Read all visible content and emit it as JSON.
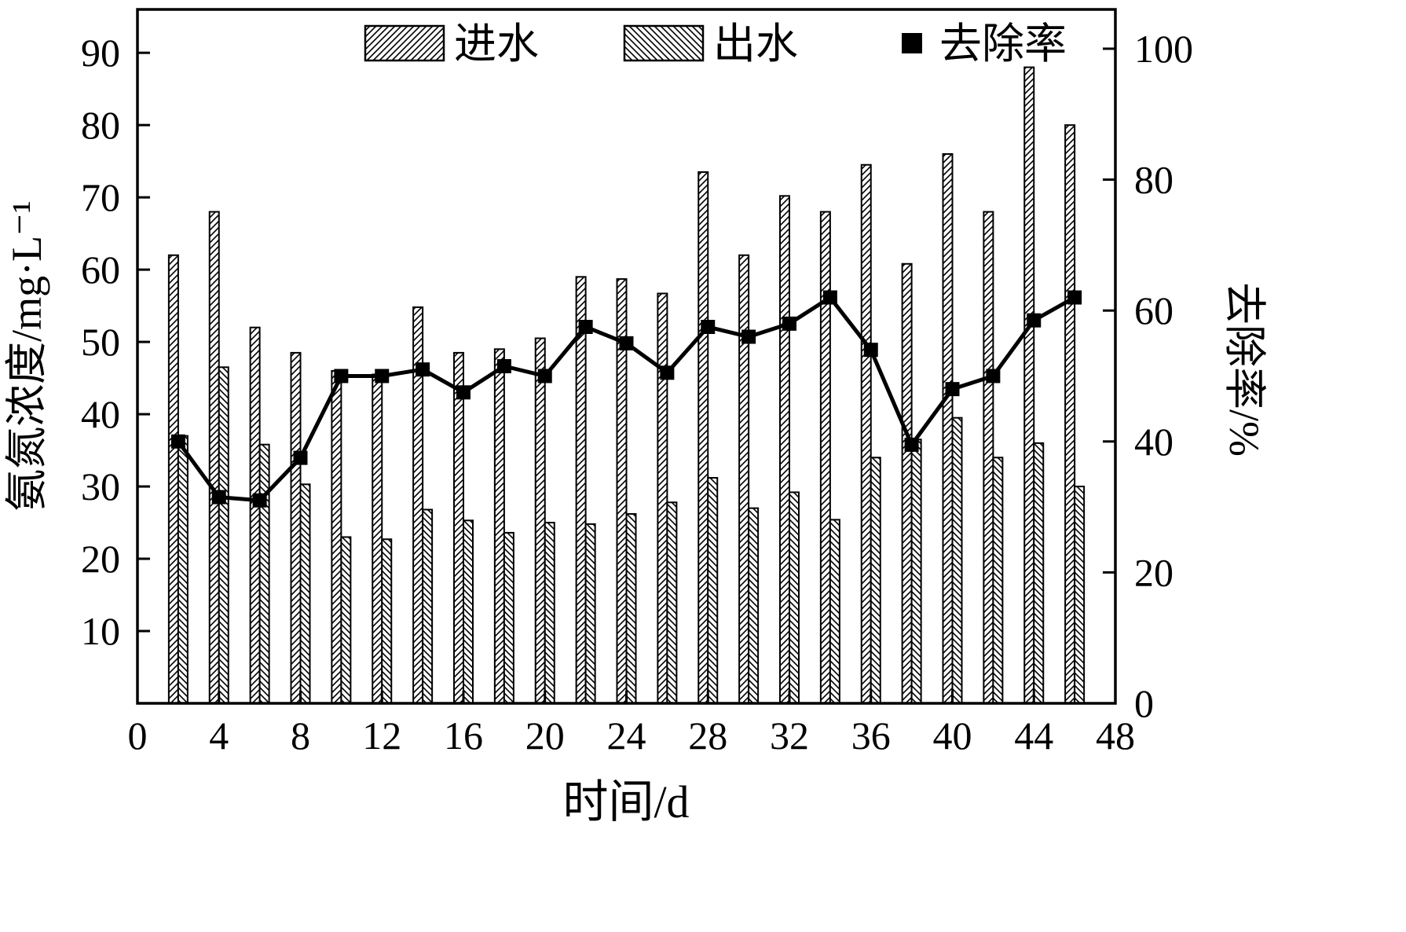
{
  "chart_data": {
    "type": "bar+line",
    "xlabel": "时间/d",
    "ylabel_left": "氨氮浓度/mg·L⁻¹",
    "ylabel_right": "去除率/%",
    "xlim": [
      0,
      48
    ],
    "ylim_left": [
      0,
      96
    ],
    "ylim_right": [
      0,
      106
    ],
    "xticks": [
      0,
      4,
      8,
      12,
      16,
      20,
      24,
      28,
      32,
      36,
      40,
      44,
      48
    ],
    "yticks_left": [
      10,
      20,
      30,
      40,
      50,
      60,
      70,
      80,
      90
    ],
    "yticks_right": [
      0,
      20,
      40,
      60,
      80,
      100
    ],
    "grid": false,
    "legend_position": "top-center-inside",
    "x": [
      2,
      4,
      6,
      8,
      10,
      12,
      14,
      16,
      18,
      20,
      22,
      24,
      26,
      28,
      30,
      32,
      34,
      36,
      38,
      40,
      42,
      44,
      46
    ],
    "series": [
      {
        "name": "进水",
        "type": "bar",
        "axis": "left",
        "hatch": "forward-diagonal",
        "values": [
          62,
          68,
          52,
          48.5,
          46,
          45.5,
          54.8,
          48.5,
          49,
          50.5,
          59,
          58.7,
          56.7,
          73.5,
          62,
          70.2,
          68,
          74.5,
          60.8,
          76,
          68,
          88,
          80
        ]
      },
      {
        "name": "出水",
        "type": "bar",
        "axis": "left",
        "hatch": "back-diagonal",
        "values": [
          37,
          46.5,
          35.8,
          30.3,
          23,
          22.7,
          26.8,
          25.3,
          23.6,
          25,
          24.8,
          26.2,
          27.8,
          31.2,
          27,
          29.2,
          25.4,
          34,
          36.5,
          39.5,
          34,
          36,
          30
        ]
      },
      {
        "name": "去除率",
        "type": "line",
        "axis": "right",
        "marker": "filled-square",
        "values": [
          40,
          31.5,
          31,
          37.5,
          50,
          50,
          51,
          47.5,
          51.5,
          50,
          57.5,
          55,
          50.5,
          57.5,
          56,
          58,
          62,
          54,
          39.5,
          48,
          50,
          58.5,
          62
        ]
      }
    ],
    "colors": {
      "stroke": "#000000",
      "bar_fill": "#ffffff",
      "background": "#ffffff"
    }
  }
}
